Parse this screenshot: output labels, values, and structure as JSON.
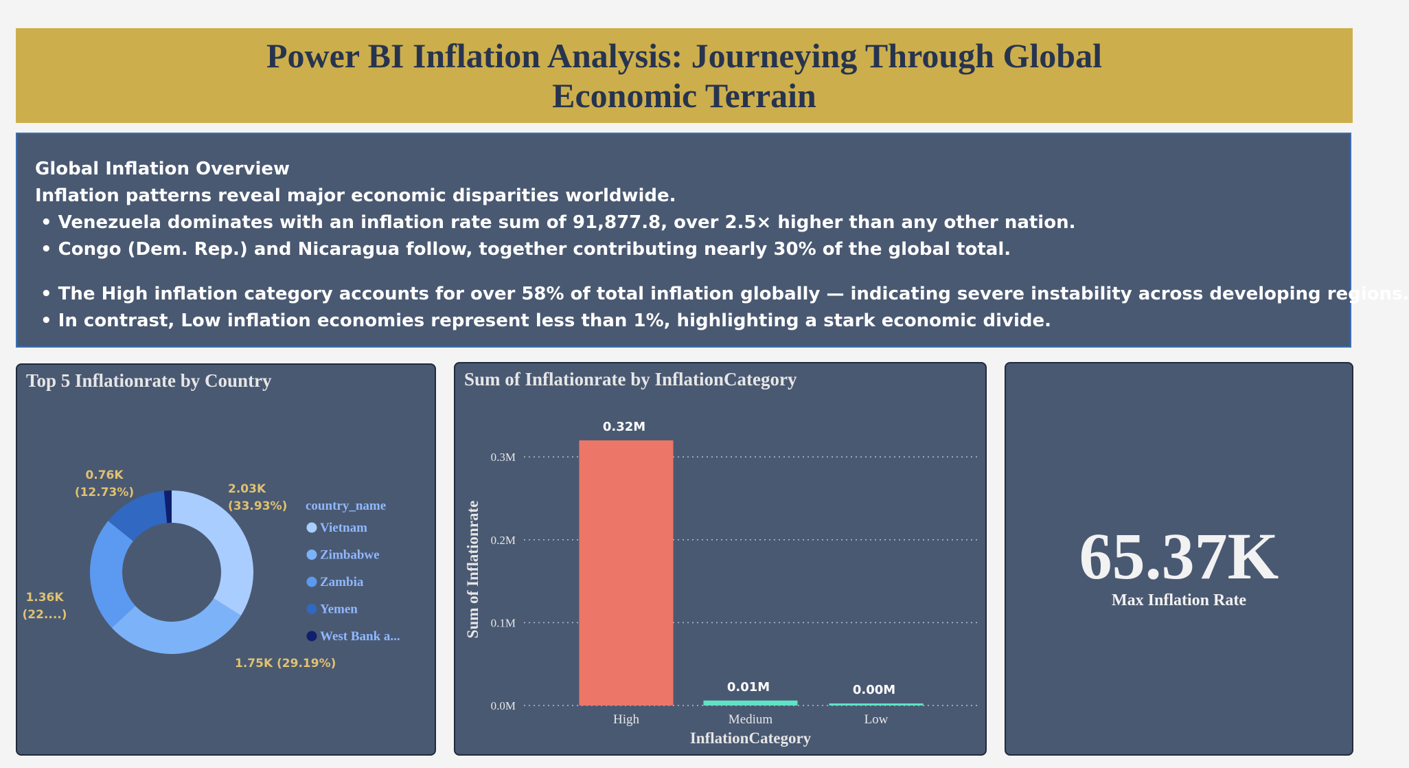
{
  "title": "Power BI Inflation Analysis: Journeying Through Global Economic Terrain",
  "overview": {
    "heading": "Global Inflation Overview",
    "intro": "Inflation patterns reveal major economic disparities worldwide.",
    "bullets_1": [
      "• Venezuela dominates with an inflation rate sum of 91,877.8, over 2.5× higher than any other nation.",
      "• Congo (Dem. Rep.) and Nicaragua follow, together contributing nearly 30% of the global total."
    ],
    "bullets_2": [
      "• The High inflation category accounts for over 58% of total inflation globally — indicating severe instability across developing regions.",
      "• In contrast, Low inflation economies represent less than 1%, highlighting a stark economic divide."
    ]
  },
  "donut_card": {
    "title": "Top 5 Inflationrate by Country",
    "legend_title": "country_name",
    "legend_items": [
      "Vietnam",
      "Zimbabwe",
      "Zambia",
      "Yemen",
      "West Bank a..."
    ]
  },
  "bar_card": {
    "title": "Sum of Inflationrate by InflationCategory"
  },
  "kpi_card": {
    "value": "65.37K",
    "label": "Max Inflation Rate"
  },
  "colors": {
    "banner": "#cdae4c",
    "panel": "#4a5972",
    "label_gold": "#e0c270",
    "bar_high": "#ec7668",
    "bar_other": "#5fe3c4"
  },
  "chart_data": [
    {
      "type": "pie",
      "variant": "donut",
      "title": "Top 5 Inflationrate by Country",
      "legend_title": "country_name",
      "legend_position": "right",
      "slices": [
        {
          "label": "Vietnam",
          "value": 2030,
          "percent": 33.93,
          "data_label": "2.03K",
          "pct_label": "(33.93%)",
          "color": "#a9cdff"
        },
        {
          "label": "Zimbabwe",
          "value": 1750,
          "percent": 29.19,
          "data_label": "1.75K",
          "pct_label": "(29.19%)",
          "color": "#7cb2f8"
        },
        {
          "label": "Zambia",
          "value": 1360,
          "percent": 22.7,
          "data_label": "1.36K",
          "pct_label": "(22....)",
          "color": "#5b9af0"
        },
        {
          "label": "Yemen",
          "value": 760,
          "percent": 12.73,
          "data_label": "0.76K",
          "pct_label": "(12.73%)",
          "color": "#3068c2"
        },
        {
          "label": "West Bank a...",
          "value": 90,
          "percent": 1.45,
          "data_label": "",
          "pct_label": "",
          "color": "#0f1f6e"
        }
      ]
    },
    {
      "type": "bar",
      "title": "Sum of Inflationrate by InflationCategory",
      "xlabel": "InflationCategory",
      "ylabel": "Sum of Inflationrate",
      "categories": [
        "High",
        "Medium",
        "Low"
      ],
      "values": [
        0.32,
        0.006,
        0.002
      ],
      "unit": "M",
      "data_labels": [
        "0.32M",
        "0.01M",
        "0.00M"
      ],
      "ylim": [
        0,
        0.33
      ],
      "yticks": [
        0,
        0.1,
        0.2,
        0.3
      ],
      "ytick_labels": [
        "0.0M",
        "0.1M",
        "0.2M",
        "0.3M"
      ],
      "grid": true,
      "colors": [
        "#ec7668",
        "#5fe3c4",
        "#5fe3c4"
      ]
    }
  ]
}
